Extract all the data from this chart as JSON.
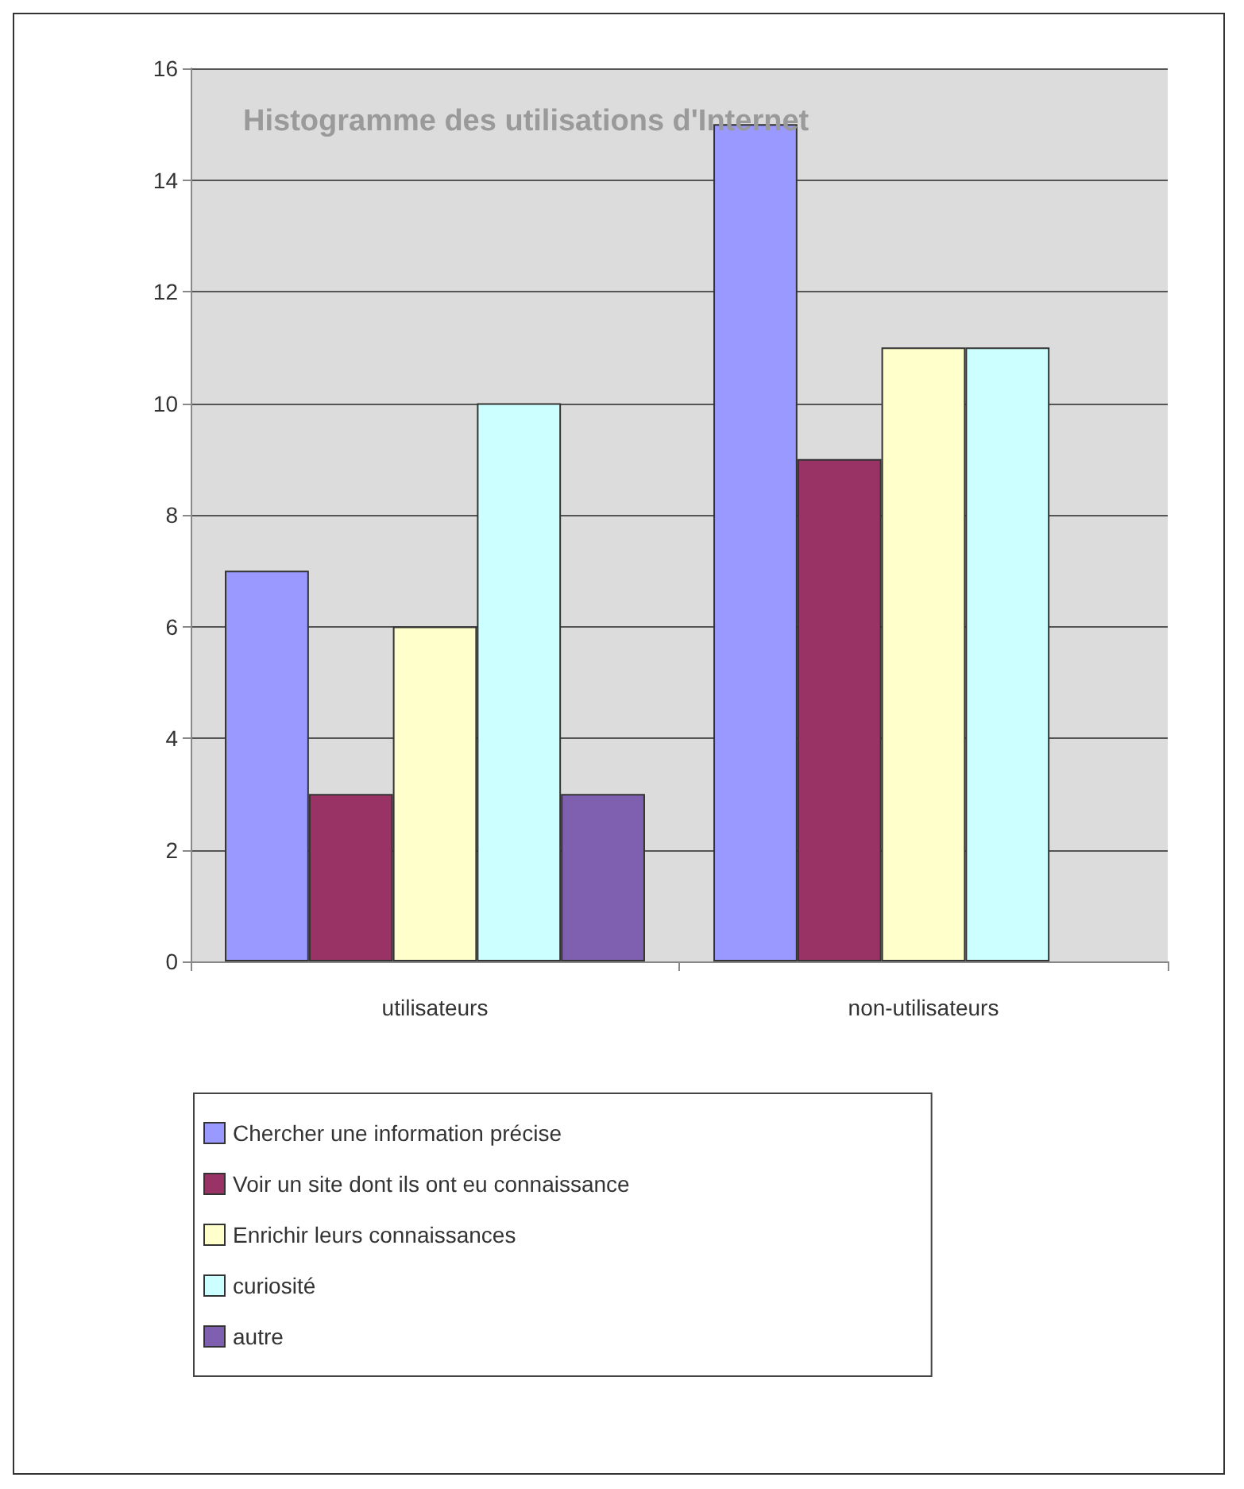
{
  "chart_data": {
    "type": "bar",
    "title": "Histogramme des utilisations d'Internet",
    "categories": [
      "utilisateurs",
      "non-utilisateurs"
    ],
    "series": [
      {
        "name": "Chercher une information précise",
        "color": "#9999ff",
        "values": [
          7,
          15
        ]
      },
      {
        "name": "Voir un site dont ils ont eu connaissance",
        "color": "#993366",
        "values": [
          3,
          9
        ]
      },
      {
        "name": "Enrichir leurs connaissances",
        "color": "#ffffcc",
        "values": [
          6,
          11
        ]
      },
      {
        "name": "curiosité",
        "color": "#ccffff",
        "values": [
          10,
          11
        ]
      },
      {
        "name": "autre",
        "color": "#7f5fb0",
        "values": [
          3,
          null
        ]
      }
    ],
    "ylim": [
      0,
      16
    ],
    "yticks": [
      0,
      2,
      4,
      6,
      8,
      10,
      12,
      14,
      16
    ],
    "grid": "y",
    "legend": "bottom"
  }
}
